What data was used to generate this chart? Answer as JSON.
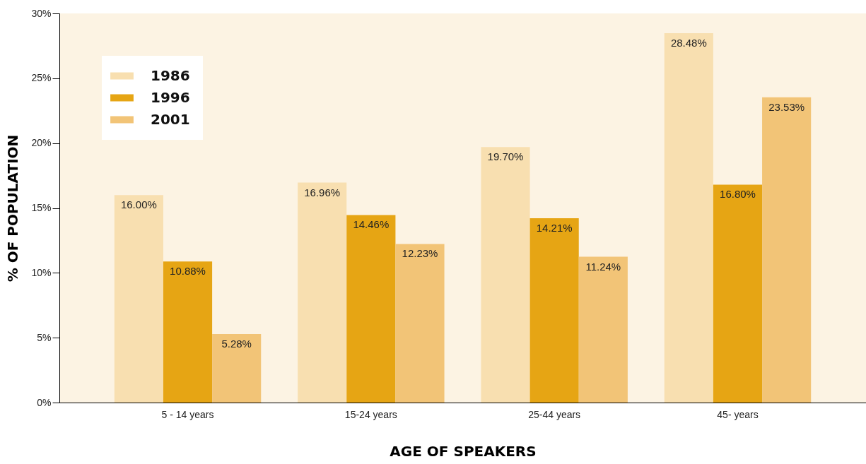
{
  "chart_data": {
    "type": "bar",
    "xlabel": "AGE OF SPEAKERS",
    "ylabel": "% OF POPULATION",
    "categories": [
      "5 - 14 years",
      "15-24 years",
      "25-44 years",
      "45- years"
    ],
    "series": [
      {
        "name": "1986",
        "color": "#f8dfb0",
        "values": [
          16.0,
          16.96,
          19.7,
          28.48
        ],
        "value_labels": [
          "16.00%",
          "16.96%",
          "19.70%",
          "28.48%"
        ]
      },
      {
        "name": "1996",
        "color": "#e6a514",
        "values": [
          10.88,
          14.46,
          14.21,
          16.8
        ],
        "value_labels": [
          "10.88%",
          "14.46%",
          "14.21%",
          "16.80%"
        ]
      },
      {
        "name": "2001",
        "color": "#f2c477",
        "values": [
          5.28,
          12.23,
          11.24,
          23.53
        ],
        "value_labels": [
          "5.28%",
          "12.23%",
          "11.24%",
          "23.53%"
        ]
      }
    ],
    "ylim": [
      0,
      30
    ],
    "yticks": [
      {
        "value": 0,
        "label": "0%"
      },
      {
        "value": 5,
        "label": "5%"
      },
      {
        "value": 10,
        "label": "10%"
      },
      {
        "value": 15,
        "label": "15%"
      },
      {
        "value": 20,
        "label": "20%"
      },
      {
        "value": 25,
        "label": "25%"
      },
      {
        "value": 30,
        "label": "30%"
      }
    ],
    "grid": false,
    "legend": "top left"
  }
}
